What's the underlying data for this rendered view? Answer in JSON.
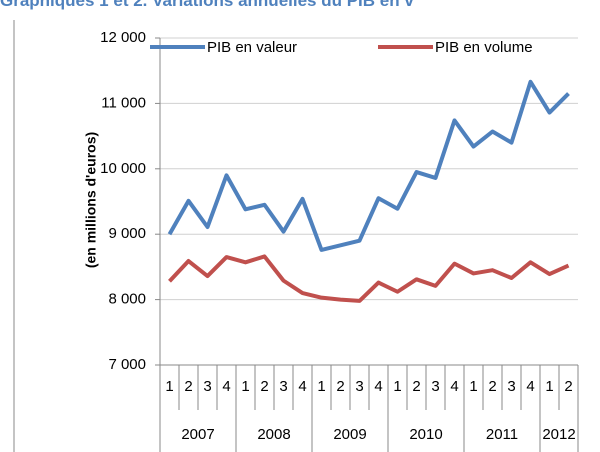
{
  "chart_data": {
    "type": "line",
    "title": "Graphiques 1 et 2. Variations annuelles du PIB en v",
    "y_label": "(en millions d'euros)",
    "categories": [
      "1",
      "2",
      "3",
      "4",
      "1",
      "2",
      "3",
      "4",
      "1",
      "2",
      "3",
      "4",
      "1",
      "2",
      "3",
      "4",
      "1",
      "2",
      "3",
      "4",
      "1",
      "2"
    ],
    "years": [
      "2007",
      "2008",
      "2009",
      "2010",
      "2011",
      "2012"
    ],
    "series": [
      {
        "name": "PIB en valeur",
        "color": "#4f81bd",
        "values": [
          9000,
          9510,
          9110,
          9900,
          9380,
          9450,
          9040,
          9540,
          8760,
          8830,
          8900,
          9550,
          9390,
          9950,
          9860,
          10740,
          10340,
          10570,
          10400,
          11330,
          10860,
          11150
        ]
      },
      {
        "name": "PIB en volume",
        "color": "#c0504d",
        "values": [
          8280,
          8590,
          8360,
          8650,
          8570,
          8660,
          8290,
          8100,
          8030,
          8000,
          7980,
          8260,
          8120,
          8310,
          8210,
          8550,
          8400,
          8450,
          8330,
          8570,
          8390,
          8520
        ]
      }
    ],
    "ylim": [
      7000,
      12000
    ],
    "yticks": [
      {
        "value": 7000,
        "label": "7 000"
      },
      {
        "value": 8000,
        "label": "8 000"
      },
      {
        "value": 9000,
        "label": "9 000"
      },
      {
        "value": 10000,
        "label": "10 000"
      },
      {
        "value": 11000,
        "label": "11 000"
      },
      {
        "value": 12000,
        "label": "12 000"
      }
    ],
    "grid": true,
    "legend": "top"
  }
}
